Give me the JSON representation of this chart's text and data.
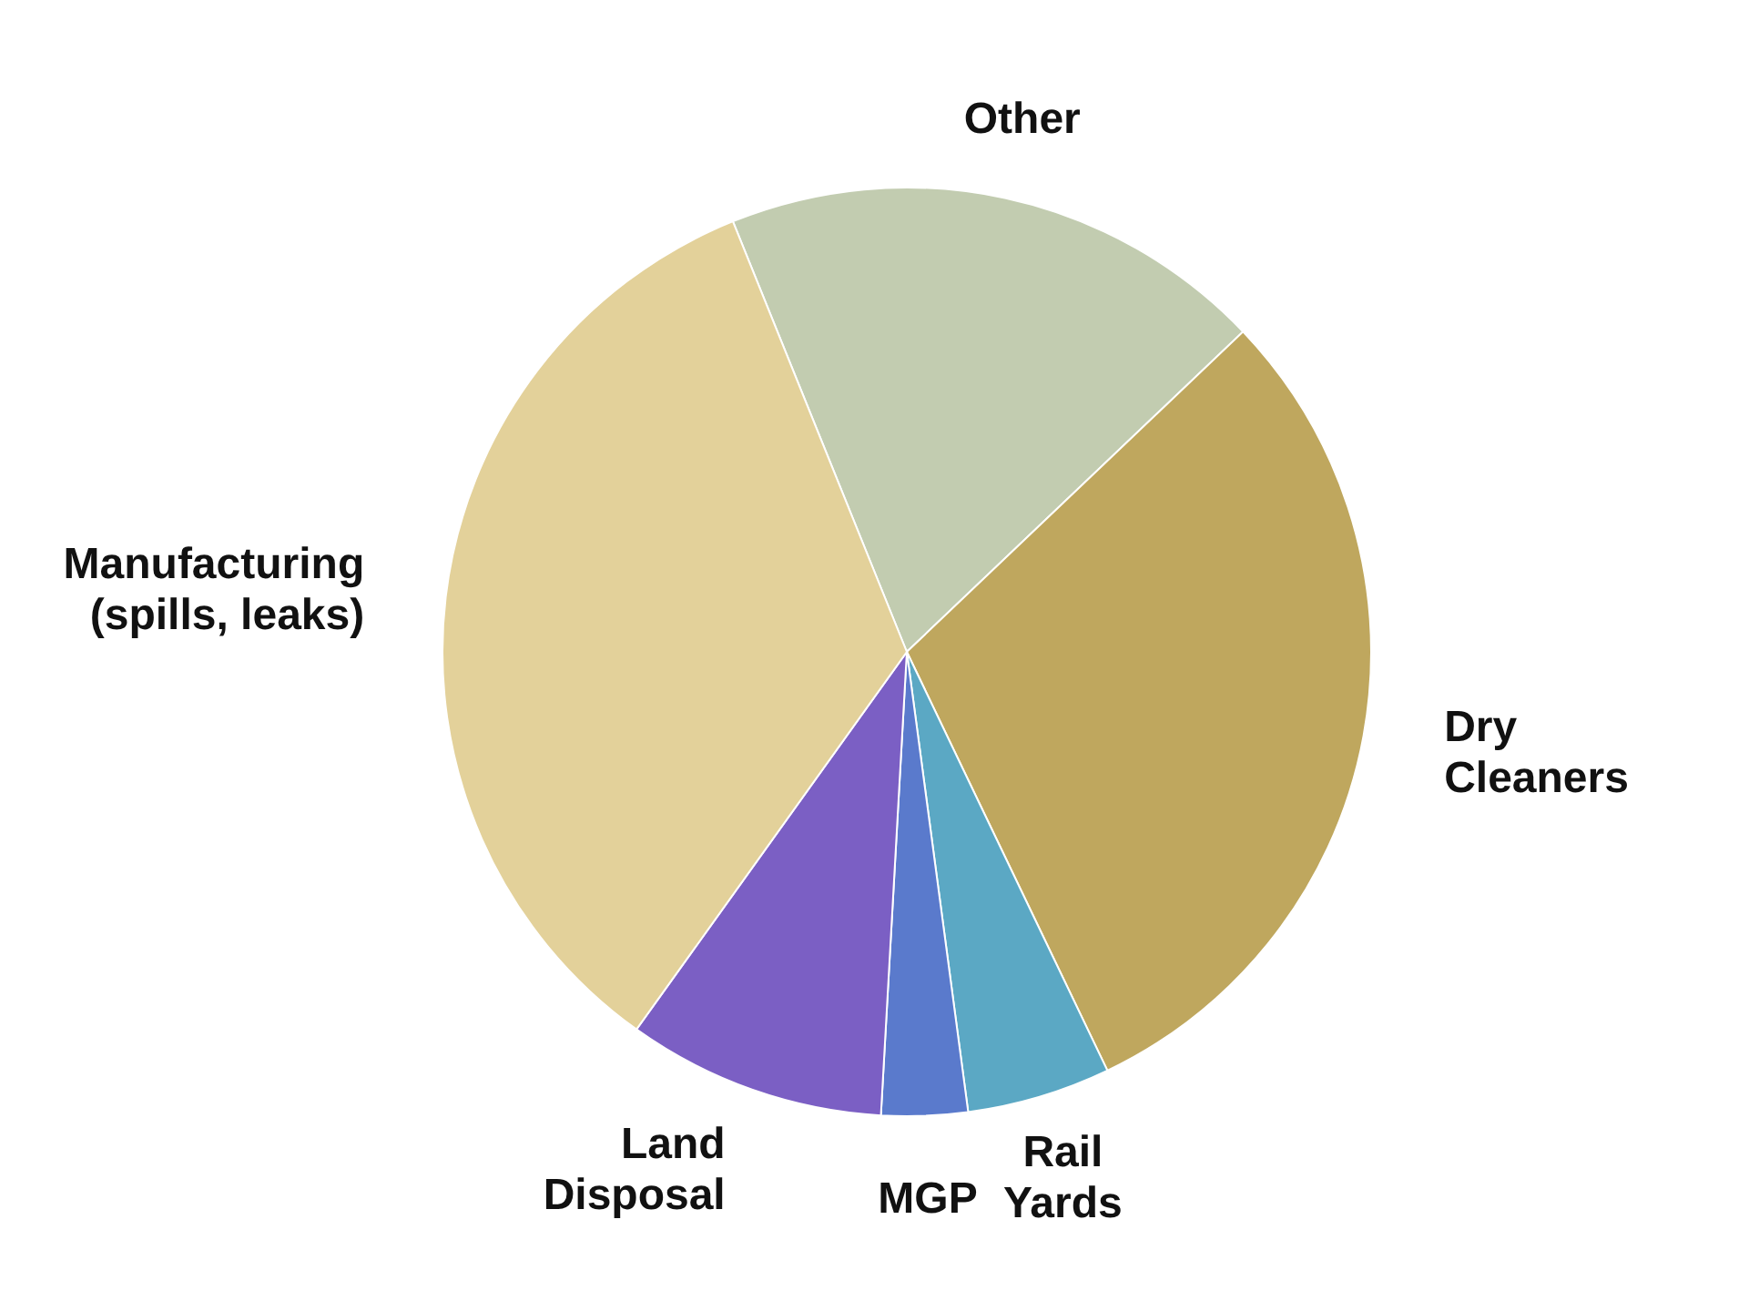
{
  "chart_data": {
    "type": "pie",
    "categories": [
      "Other",
      "Dry Cleaners",
      "Rail Yards",
      "MGP",
      "Land Disposal",
      "Manufacturing (spills, leaks)"
    ],
    "values": [
      19,
      30,
      5,
      3,
      9,
      34
    ],
    "colors": [
      "#c2ccb0",
      "#bfa75e",
      "#5ba8c4",
      "#5a7acc",
      "#7b5fc4",
      "#e3d19a"
    ]
  }
}
